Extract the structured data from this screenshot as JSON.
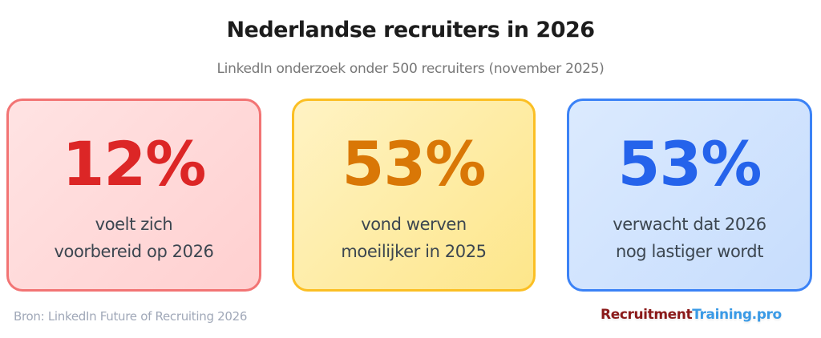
{
  "header": {
    "title": "Nederlandse recruiters in 2026",
    "subtitle": "LinkedIn onderzoek onder 500 recruiters (november 2025)"
  },
  "cards": [
    {
      "value": "12%",
      "line1": "voelt zich",
      "line2": "voorbereid op 2026",
      "accent_color": "#dc2626",
      "border_color": "#f27474",
      "background_color": "#ffd6d6"
    },
    {
      "value": "53%",
      "line1": "vond werven",
      "line2": "moeilijker in 2025",
      "accent_color": "#d97706",
      "border_color": "#fbbf24",
      "background_color": "#fdeca6"
    },
    {
      "value": "53%",
      "line1": "verwacht dat 2026",
      "line2": "nog lastiger wordt",
      "accent_color": "#2563eb",
      "border_color": "#3b82f6",
      "background_color": "#d3e4fd"
    }
  ],
  "footer": {
    "source": "Bron: LinkedIn Future of Recruiting 2026",
    "logo_part1": "Recruitment",
    "logo_part2": "Training.pro"
  }
}
